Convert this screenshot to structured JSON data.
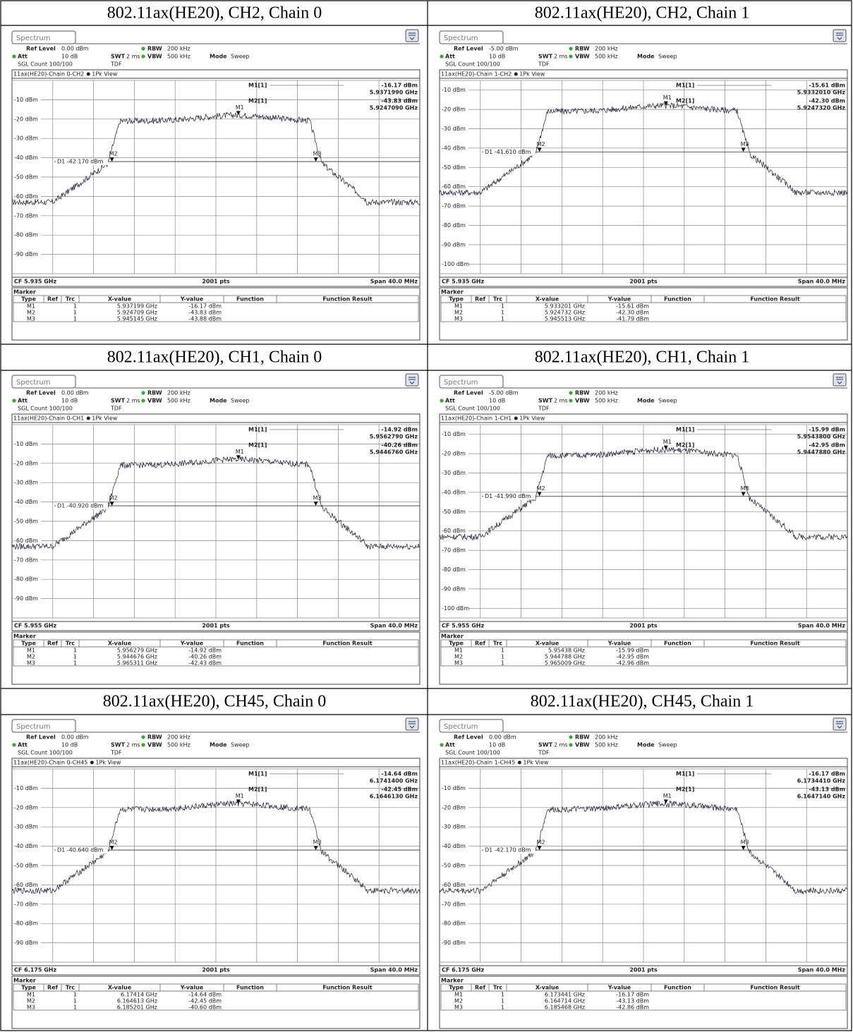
{
  "labels": {
    "tab": "Spectrum",
    "ref_level": "Ref Level",
    "rbw": "RBW",
    "rbw_value": "200 kHz",
    "att": "Att",
    "att_value": "10 dB",
    "swt": "SWT",
    "swt_value": "2 ms",
    "vbw": "VBW",
    "vbw_value": "500 kHz",
    "mode": "Mode",
    "mode_value": "Sweep",
    "count": "SGL Count 100/100",
    "tdf": "TDF",
    "view": "1Pk View",
    "m1": "M1[1]",
    "m2": "M2[1]",
    "flags": [
      "M1",
      "M2",
      "M3"
    ],
    "points": "2001 pts",
    "span": "Span 40.0 MHz",
    "marker": "Marker",
    "columns": [
      "Type",
      "Ref",
      "Trc",
      "X-value",
      "Y-value",
      "Function",
      "Function Result"
    ]
  },
  "panels": [
    {
      "heading": "802.11ax(HE20), CH2, Chain 0",
      "ref_level": "0.00 dBm",
      "trace_title": "11ax(HE20)-Chain 0-CH2",
      "y_labels": [
        "-10 dBm",
        "-20 dBm",
        "-30 dBm",
        "-40 dBm",
        "-50 dBm",
        "-60 dBm",
        "-70 dBm",
        "-80 dBm",
        "-90 dBm"
      ],
      "m1_value": "-16.17 dBm",
      "m1_freq": "5.9371990 GHz",
      "m2_value": "-43.83 dBm",
      "m2_freq": "5.9247090 GHz",
      "d1": "D1 -42.170 dBm",
      "cf": "CF 5.935 GHz",
      "rows": [
        [
          "M1",
          "1",
          "5.937199 GHz",
          "-16.17 dBm"
        ],
        [
          "M2",
          "1",
          "5.924709 GHz",
          "-43.83 dBm"
        ],
        [
          "M3",
          "1",
          "5.945145 GHz",
          "-43.88 dBm"
        ]
      ]
    },
    {
      "heading": "802.11ax(HE20), CH2, Chain 1",
      "ref_level": "-5.00 dBm",
      "trace_title": "11ax(HE20)-Chain 1-CH2",
      "y_labels": [
        "-10 dBm",
        "-20 dBm",
        "-30 dBm",
        "-40 dBm",
        "-50 dBm",
        "-60 dBm",
        "-70 dBm",
        "-80 dBm",
        "-90 dBm",
        "-100 dBm"
      ],
      "m1_value": "-15.61 dBm",
      "m1_freq": "5.9332010 GHz",
      "m2_value": "-42.30 dBm",
      "m2_freq": "5.9247320 GHz",
      "d1": "D1 -41.610 dBm",
      "cf": "CF 5.935 GHz",
      "rows": [
        [
          "M1",
          "1",
          "5.933201 GHz",
          "-15.61 dBm"
        ],
        [
          "M2",
          "1",
          "5.924732 GHz",
          "-42.30 dBm"
        ],
        [
          "M3",
          "1",
          "5.945513 GHz",
          "-41.79 dBm"
        ]
      ]
    },
    {
      "heading": "802.11ax(HE20), CH1, Chain 0",
      "ref_level": "0.00 dBm",
      "trace_title": "11ax(HE20)-Chain 0-CH1",
      "y_labels": [
        "-10 dBm",
        "-20 dBm",
        "-30 dBm",
        "-40 dBm",
        "-50 dBm",
        "-60 dBm",
        "-70 dBm",
        "-80 dBm",
        "-90 dBm"
      ],
      "m1_value": "-14.92 dBm",
      "m1_freq": "5.9562790 GHz",
      "m2_value": "-40.26 dBm",
      "m2_freq": "5.9446760 GHz",
      "d1": "D1 -40.920 dBm",
      "cf": "CF 5.955 GHz",
      "rows": [
        [
          "M1",
          "1",
          "5.956279 GHz",
          "-14.92 dBm"
        ],
        [
          "M2",
          "1",
          "5.944676 GHz",
          "-40.26 dBm"
        ],
        [
          "M3",
          "1",
          "5.965311 GHz",
          "-42.43 dBm"
        ]
      ]
    },
    {
      "heading": "802.11ax(HE20), CH1, Chain 1",
      "ref_level": "-5.00 dBm",
      "trace_title": "11ax(HE20)-Chain 1-CH1",
      "y_labels": [
        "-10 dBm",
        "-20 dBm",
        "-30 dBm",
        "-40 dBm",
        "-50 dBm",
        "-60 dBm",
        "-70 dBm",
        "-80 dBm",
        "-90 dBm",
        "-100 dBm"
      ],
      "m1_value": "-15.99 dBm",
      "m1_freq": "5.9543800 GHz",
      "m2_value": "-42.95 dBm",
      "m2_freq": "5.9447880 GHz",
      "d1": "D1 -41.990 dBm",
      "cf": "CF 5.955 GHz",
      "rows": [
        [
          "M1",
          "1",
          "5.95438 GHz",
          "-15.99 dBm"
        ],
        [
          "M2",
          "1",
          "5.944788 GHz",
          "-42.95 dBm"
        ],
        [
          "M3",
          "1",
          "5.965009 GHz",
          "-42.96 dBm"
        ]
      ]
    },
    {
      "heading": "802.11ax(HE20), CH45, Chain 0",
      "ref_level": "0.00 dBm",
      "trace_title": "11ax(HE20)-Chain 0-CH45",
      "y_labels": [
        "-10 dBm",
        "-20 dBm",
        "-30 dBm",
        "-40 dBm",
        "-50 dBm",
        "-60 dBm",
        "-70 dBm",
        "-80 dBm",
        "-90 dBm"
      ],
      "m1_value": "-14.64 dBm",
      "m1_freq": "6.1741400 GHz",
      "m2_value": "-42.45 dBm",
      "m2_freq": "6.1646130 GHz",
      "d1": "D1 -40.640 dBm",
      "cf": "CF 6.175 GHz",
      "rows": [
        [
          "M1",
          "1",
          "6.17414 GHz",
          "-14.64 dBm"
        ],
        [
          "M2",
          "1",
          "6.164613 GHz",
          "-42.45 dBm"
        ],
        [
          "M3",
          "1",
          "6.185201 GHz",
          "-40.60 dBm"
        ]
      ]
    },
    {
      "heading": "802.11ax(HE20), CH45, Chain 1",
      "ref_level": "0.00 dBm",
      "trace_title": "11ax(HE20)-Chain 1-CH45",
      "y_labels": [
        "-10 dBm",
        "-20 dBm",
        "-30 dBm",
        "-40 dBm",
        "-50 dBm",
        "-60 dBm",
        "-70 dBm",
        "-80 dBm",
        "-90 dBm"
      ],
      "m1_value": "-16.17 dBm",
      "m1_freq": "6.1734410 GHz",
      "m2_value": "-43.13 dBm",
      "m2_freq": "6.1647140 GHz",
      "d1": "D1 -42.170 dBm",
      "cf": "CF 6.175 GHz",
      "rows": [
        [
          "M1",
          "1",
          "6.173441 GHz",
          "-16.17 dBm"
        ],
        [
          "M2",
          "1",
          "6.164714 GHz",
          "-43.13 dBm"
        ],
        [
          "M3",
          "1",
          "6.185468 GHz",
          "-42.86 dBm"
        ]
      ]
    }
  ]
}
